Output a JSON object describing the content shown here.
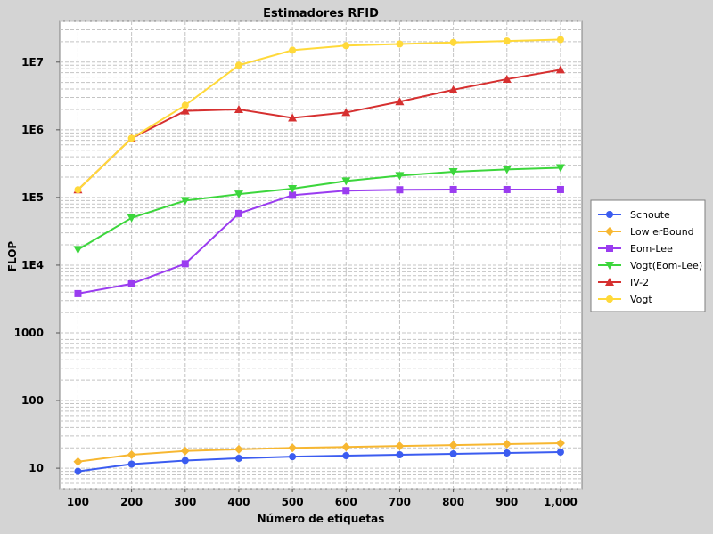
{
  "chart_data": {
    "type": "line",
    "title": "Estimadores RFID",
    "xlabel": "Número de etiquetas",
    "ylabel": "FLOP",
    "x": [
      100,
      200,
      300,
      400,
      500,
      600,
      700,
      800,
      900,
      1000
    ],
    "x_tick_labels": [
      "100",
      "200",
      "300",
      "400",
      "500",
      "600",
      "700",
      "800",
      "900",
      "1,000"
    ],
    "y_scale": "log",
    "ylim": [
      5,
      40000000
    ],
    "y_ticks": [
      10,
      100,
      1000,
      10000,
      100000,
      1000000,
      10000000
    ],
    "y_tick_labels": [
      "10",
      "100",
      "1000",
      "1E4",
      "1E5",
      "1E6",
      "1E7"
    ],
    "grid": true,
    "legend_position": "right",
    "series": [
      {
        "name": "Schoute",
        "color": "#3b5cf0",
        "marker": "circle",
        "values": [
          9,
          11.5,
          13,
          14,
          14.8,
          15.3,
          15.8,
          16.3,
          16.8,
          17.3
        ]
      },
      {
        "name": "Low erBound",
        "color": "#f7b731",
        "marker": "diamond",
        "values": [
          12.5,
          15.8,
          18,
          19,
          20,
          20.6,
          21.3,
          22,
          22.7,
          23.4
        ]
      },
      {
        "name": "Eom-Lee",
        "color": "#9a3cf0",
        "marker": "square",
        "values": [
          3800,
          5300,
          10500,
          58000,
          108000,
          126000,
          130000,
          131000,
          131000,
          131000
        ]
      },
      {
        "name": "Vogt(Eom-Lee)",
        "color": "#3cd63c",
        "marker": "triangle-down",
        "values": [
          17000,
          50000,
          90000,
          112000,
          135000,
          175000,
          210000,
          240000,
          260000,
          275000
        ]
      },
      {
        "name": "IV-2",
        "color": "#d63030",
        "marker": "triangle-up",
        "values": [
          130000,
          750000,
          1900000,
          2000000,
          1500000,
          1800000,
          2600000,
          3900000,
          5600000,
          7700000
        ]
      },
      {
        "name": "Vogt",
        "color": "#ffd93a",
        "marker": "circle",
        "values": [
          130000,
          750000,
          2300000,
          9000000,
          15000000,
          17500000,
          18500000,
          19500000,
          20500000,
          21500000
        ]
      }
    ]
  }
}
